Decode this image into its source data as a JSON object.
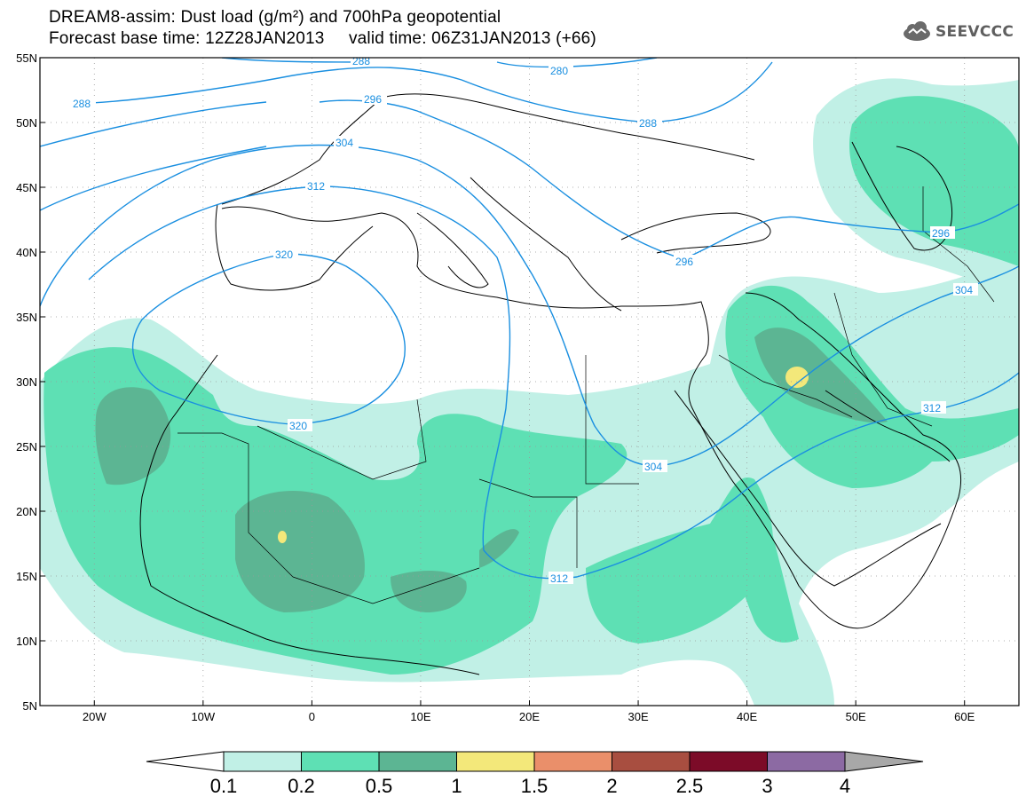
{
  "title": {
    "line1": "DREAM8-assim: Dust load (g/m²) and 700hPa geopotential",
    "line2": "Forecast base time: 12Z28JAN2013     valid time: 06Z31JAN2013 (+66)"
  },
  "logo": {
    "text": "SEEVCCC",
    "icon": "cloud-icon"
  },
  "map": {
    "lon_range": [
      -25,
      65
    ],
    "lat_range": [
      5,
      55
    ],
    "lat_labels": [
      "55N",
      "50N",
      "45N",
      "40N",
      "35N",
      "30N",
      "25N",
      "20N",
      "15N",
      "10N",
      "5N"
    ],
    "lon_labels": [
      "20W",
      "10W",
      "0",
      "10E",
      "20E",
      "30E",
      "40E",
      "50E",
      "60E"
    ],
    "grid": "dotted"
  },
  "contours": [
    {
      "label": "280"
    },
    {
      "label": "288"
    },
    {
      "label": "288"
    },
    {
      "label": "288"
    },
    {
      "label": "296"
    },
    {
      "label": "296"
    },
    {
      "label": "296"
    },
    {
      "label": "304"
    },
    {
      "label": "304"
    },
    {
      "label": "304"
    },
    {
      "label": "312"
    },
    {
      "label": "312"
    },
    {
      "label": "312"
    },
    {
      "label": "320"
    },
    {
      "label": "320"
    }
  ],
  "colorbar": {
    "labels": [
      "0.1",
      "0.2",
      "0.5",
      "1",
      "1.5",
      "2",
      "2.5",
      "3",
      "4"
    ],
    "colors": [
      "#c1f0e6",
      "#5ee0b4",
      "#5cb593",
      "#f3e87a",
      "#ea8f6a",
      "#a84e40",
      "#7c0b28",
      "#8c6aa3"
    ],
    "under_color": "#ffffff",
    "over_color": "#a8a8a8"
  },
  "colors": {
    "contour": "#1a8fe0",
    "coast": "#000000"
  }
}
